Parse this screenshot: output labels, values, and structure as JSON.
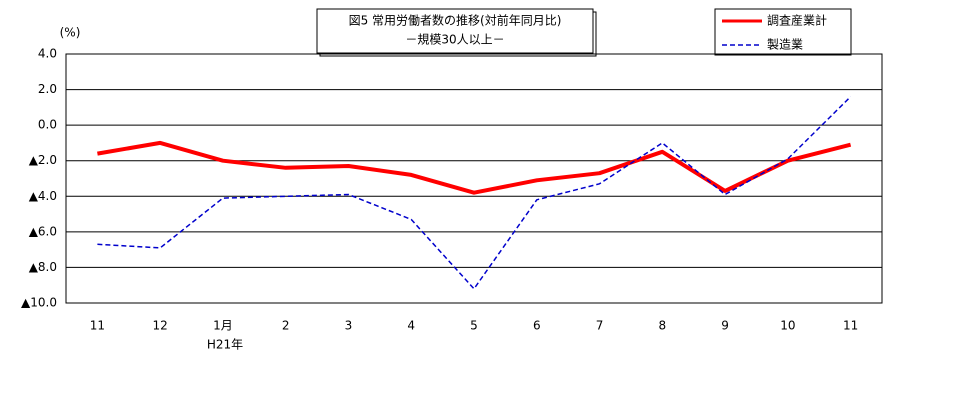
{
  "chart_data": {
    "type": "line",
    "title": "図5 常用労働者数の推移(対前年同月比)",
    "subtitle": "－規模30人以上－",
    "y_unit": "(%)",
    "x_annotation": "H21年",
    "categories": [
      "11",
      "12",
      "1月",
      "2",
      "3",
      "4",
      "5",
      "6",
      "7",
      "8",
      "9",
      "10",
      "11"
    ],
    "series": [
      {
        "name": "調査産業計",
        "color": "#ff0000",
        "dash": false,
        "values": [
          -1.6,
          -1.0,
          -2.0,
          -2.4,
          -2.3,
          -2.8,
          -3.8,
          -3.1,
          -2.7,
          -1.5,
          -3.7,
          -2.0,
          -1.1
        ]
      },
      {
        "name": "製造業",
        "color": "#0000cc",
        "dash": true,
        "values": [
          -6.7,
          -6.9,
          -4.1,
          -4.0,
          -3.9,
          -5.3,
          -9.2,
          -4.2,
          -3.3,
          -1.0,
          -3.9,
          -1.9,
          1.6
        ]
      }
    ],
    "ylim": [
      -10,
      4
    ],
    "yticks": [
      {
        "value": 4,
        "label": "4.0"
      },
      {
        "value": 2,
        "label": "2.0"
      },
      {
        "value": 0,
        "label": "0.0"
      },
      {
        "value": -2,
        "label": "▲2.0"
      },
      {
        "value": -4,
        "label": "▲4.0"
      },
      {
        "value": -6,
        "label": "▲6.0"
      },
      {
        "value": -8,
        "label": "▲8.0"
      },
      {
        "value": -10,
        "label": "▲10.0"
      }
    ],
    "grid": true
  }
}
